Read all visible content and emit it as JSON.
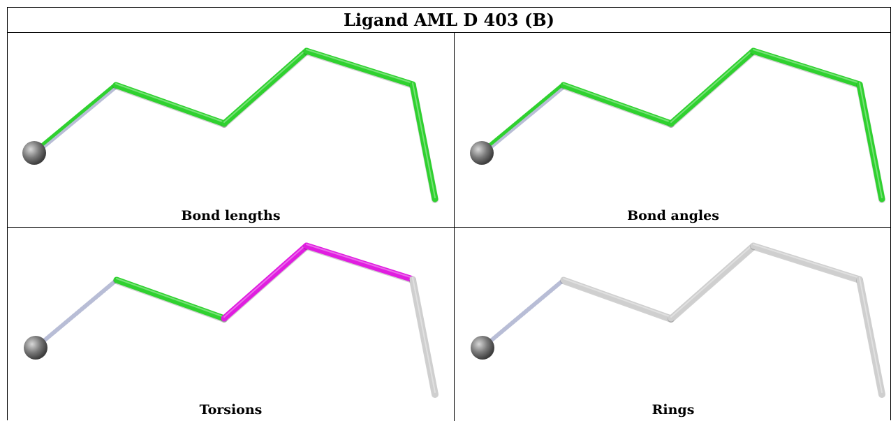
{
  "title": "Ligand AML D 403 (B)",
  "colors": {
    "green": "#2fd12f",
    "magenta": "#e01de0",
    "grey": "#cfcfcf",
    "slate": "#b8bdd6",
    "atom": "#7a7a7a"
  },
  "panels": [
    {
      "caption": "Bond lengths",
      "segments": [
        "slate",
        "green",
        "green",
        "green",
        "green",
        "green"
      ]
    },
    {
      "caption": "Bond angles",
      "segments": [
        "slate",
        "green",
        "green",
        "green",
        "green",
        "green"
      ]
    },
    {
      "caption": "Torsions",
      "segments": [
        "slate",
        "green",
        "magenta",
        "magenta",
        "grey"
      ]
    },
    {
      "caption": "Rings",
      "segments": [
        "slate",
        "grey",
        "grey",
        "grey",
        "grey"
      ]
    }
  ]
}
